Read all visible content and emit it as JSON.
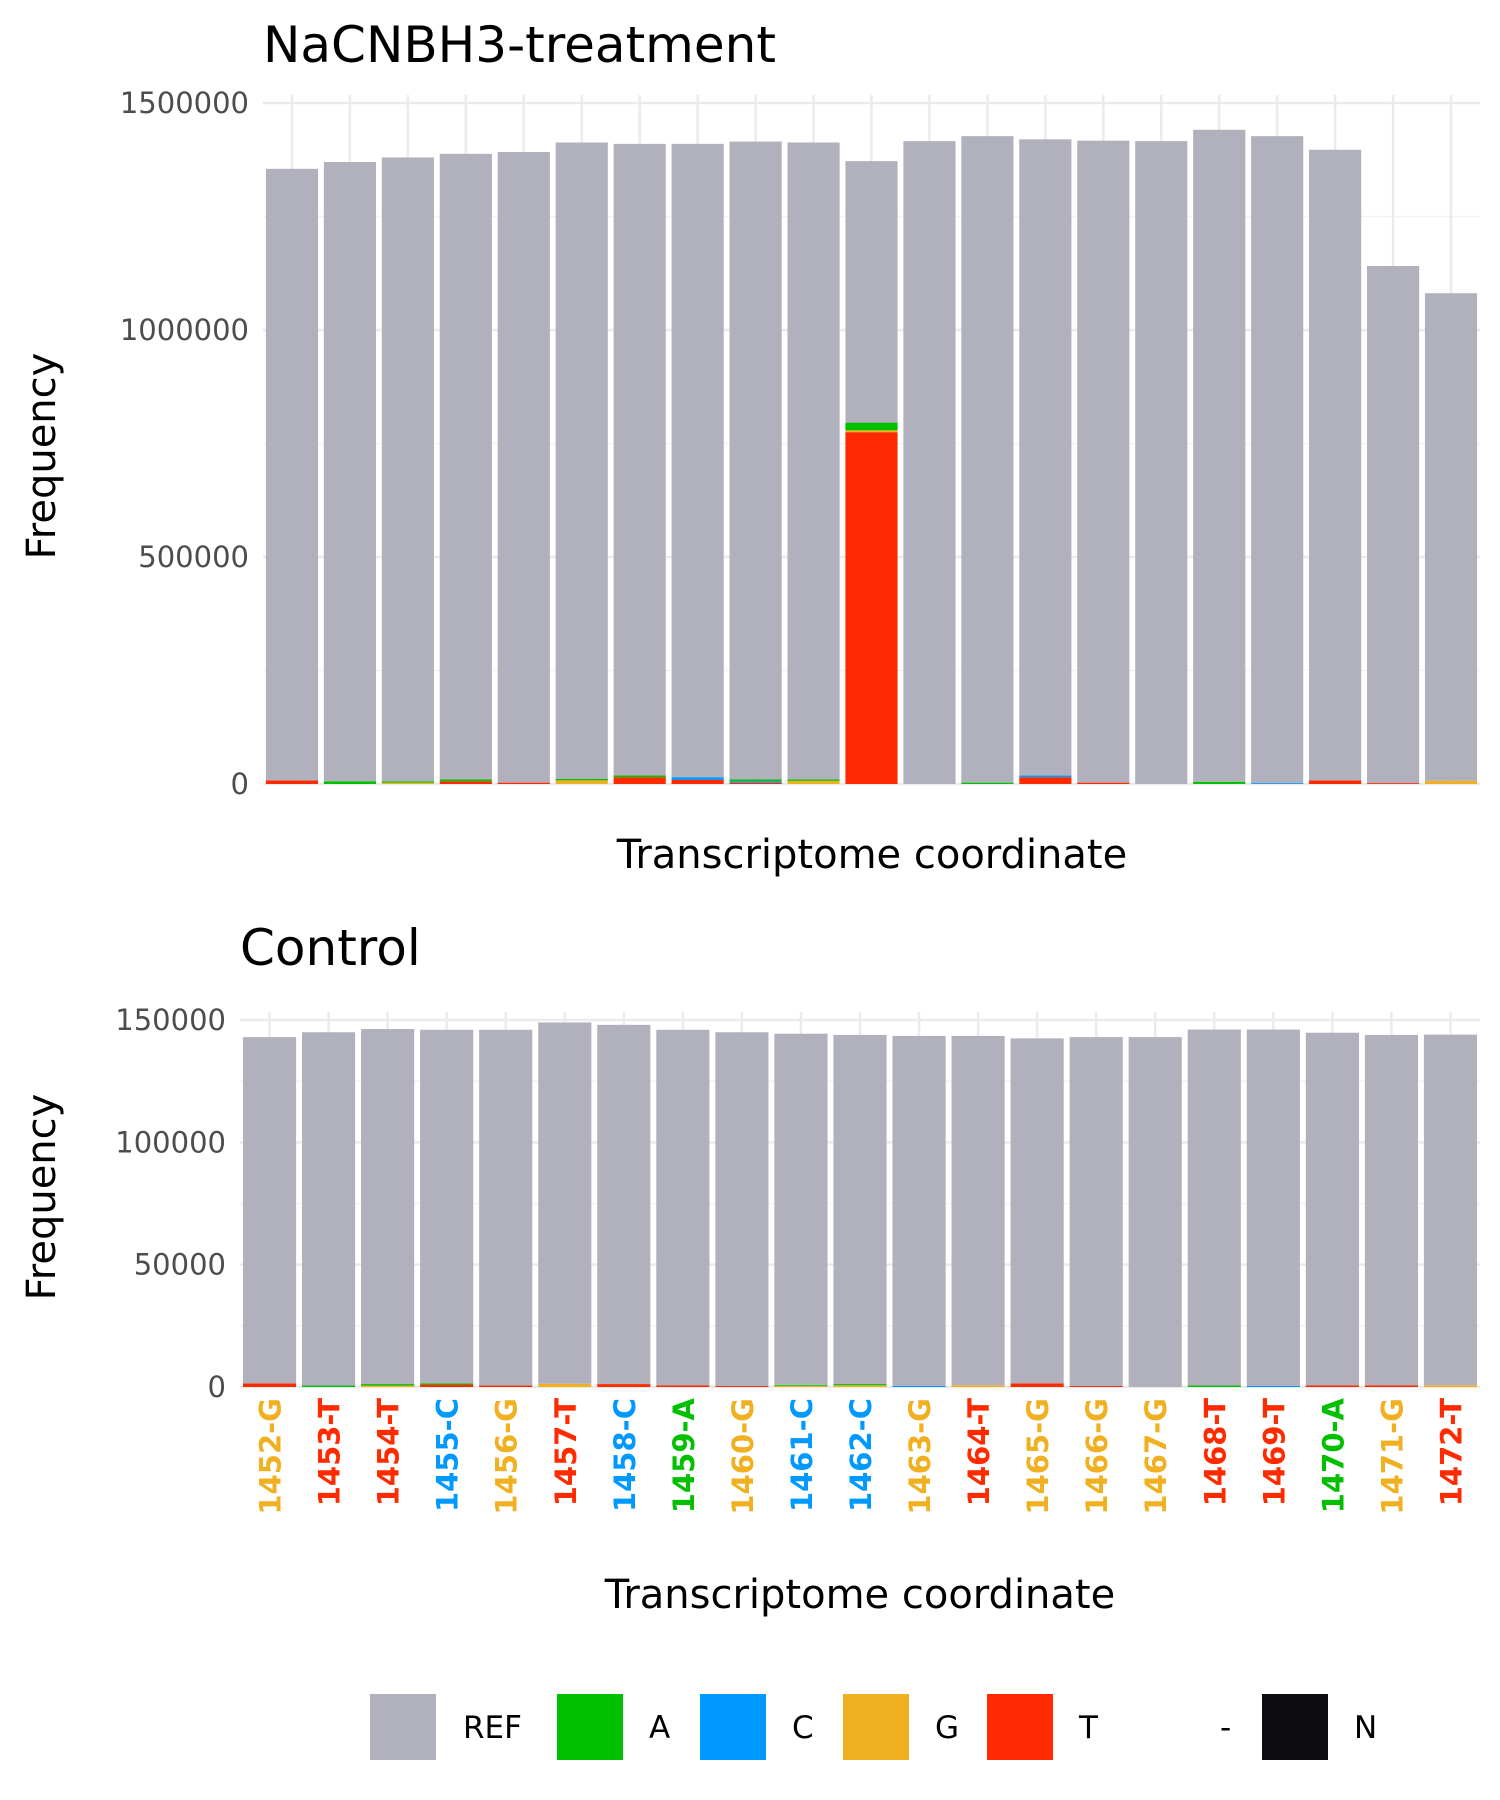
{
  "legend": [
    {
      "label": "REF",
      "color": "#B1B1BD"
    },
    {
      "label": "A",
      "color": "#00C000"
    },
    {
      "label": "C",
      "color": "#0099FF"
    },
    {
      "label": "G",
      "color": "#F0B020"
    },
    {
      "label": "T",
      "color": "#FF2A00"
    },
    {
      "label": "-",
      "color": "#FFFFFF"
    },
    {
      "label": "N",
      "color": "#0C0B0E"
    }
  ],
  "base_colors": {
    "A": "#00C000",
    "C": "#0099FF",
    "G": "#F0B020",
    "T": "#FF2A00"
  },
  "chart_data": [
    {
      "type": "bar",
      "stacked": true,
      "title": "NaCNBH3-treatment",
      "xlabel": "Transcriptome coordinate",
      "ylabel": "Frequency",
      "ylim": [
        0,
        1500000
      ],
      "yticks": [
        0,
        500000,
        1000000,
        1500000
      ],
      "yticklabels": [
        "0",
        "500000",
        "1000000",
        "1500000"
      ],
      "show_xticklabels": false,
      "grid": true,
      "categories": [
        "1452-G",
        "1453-T",
        "1454-T",
        "1455-C",
        "1456-G",
        "1457-T",
        "1458-C",
        "1459-A",
        "1460-G",
        "1461-C",
        "1462-C",
        "1463-G",
        "1464-T",
        "1465-G",
        "1466-G",
        "1467-G",
        "1468-T",
        "1469-T",
        "1470-A",
        "1471-G",
        "1472-T"
      ],
      "series": [
        {
          "name": "T",
          "values": [
            8000,
            0,
            0,
            6000,
            3000,
            0,
            15000,
            9000,
            3000,
            0,
            775000,
            0,
            0,
            15000,
            3000,
            0,
            0,
            0,
            8000,
            2000,
            0
          ]
        },
        {
          "name": "G",
          "values": [
            0,
            0,
            3000,
            0,
            0,
            8000,
            0,
            0,
            0,
            7000,
            4000,
            0,
            0,
            0,
            0,
            0,
            0,
            0,
            0,
            0,
            7000
          ]
        },
        {
          "name": "C",
          "values": [
            0,
            0,
            0,
            0,
            0,
            0,
            0,
            6000,
            3000,
            0,
            0,
            0,
            0,
            4000,
            0,
            0,
            0,
            2000,
            0,
            0,
            0
          ]
        },
        {
          "name": "A",
          "values": [
            0,
            6000,
            3000,
            4000,
            0,
            3000,
            4000,
            0,
            4000,
            3000,
            17000,
            0,
            3000,
            0,
            0,
            0,
            5000,
            0,
            0,
            0,
            0
          ]
        },
        {
          "name": "REF",
          "values": [
            1347000,
            1364000,
            1374000,
            1378000,
            1389000,
            1402000,
            1391000,
            1395000,
            1405000,
            1403000,
            576000,
            1416000,
            1424000,
            1401000,
            1414000,
            1416000,
            1436000,
            1425000,
            1389000,
            1139000,
            1074000
          ]
        }
      ]
    },
    {
      "type": "bar",
      "stacked": true,
      "title": "Control",
      "xlabel": "Transcriptome coordinate",
      "ylabel": "Frequency",
      "ylim": [
        0,
        150000
      ],
      "yticks": [
        0,
        50000,
        100000,
        150000
      ],
      "yticklabels": [
        "0",
        "50000",
        "100000",
        "150000"
      ],
      "show_xticklabels": true,
      "grid": true,
      "categories": [
        "1452-G",
        "1453-T",
        "1454-T",
        "1455-C",
        "1456-G",
        "1457-T",
        "1458-C",
        "1459-A",
        "1460-G",
        "1461-C",
        "1462-C",
        "1463-G",
        "1464-T",
        "1465-G",
        "1466-G",
        "1467-G",
        "1468-T",
        "1469-T",
        "1470-A",
        "1471-G",
        "1472-T"
      ],
      "series": [
        {
          "name": "T",
          "values": [
            1500,
            0,
            0,
            1000,
            600,
            0,
            1200,
            700,
            400,
            0,
            0,
            0,
            0,
            1500,
            400,
            0,
            0,
            0,
            700,
            700,
            0
          ]
        },
        {
          "name": "G",
          "values": [
            0,
            0,
            600,
            0,
            0,
            1300,
            0,
            0,
            0,
            500,
            700,
            0,
            700,
            0,
            0,
            0,
            0,
            0,
            0,
            0,
            700
          ]
        },
        {
          "name": "C",
          "values": [
            0,
            0,
            0,
            0,
            0,
            0,
            0,
            0,
            0,
            0,
            0,
            500,
            0,
            0,
            0,
            0,
            0,
            500,
            0,
            0,
            0
          ]
        },
        {
          "name": "A",
          "values": [
            0,
            600,
            600,
            500,
            0,
            0,
            0,
            0,
            0,
            400,
            500,
            0,
            0,
            0,
            0,
            0,
            600,
            0,
            0,
            0,
            0
          ]
        },
        {
          "name": "REF",
          "values": [
            141500,
            144400,
            145100,
            144500,
            145400,
            147700,
            146800,
            145300,
            144600,
            143500,
            142700,
            143000,
            142800,
            141000,
            142600,
            143000,
            145500,
            145600,
            144100,
            143200,
            143300
          ]
        }
      ]
    }
  ]
}
